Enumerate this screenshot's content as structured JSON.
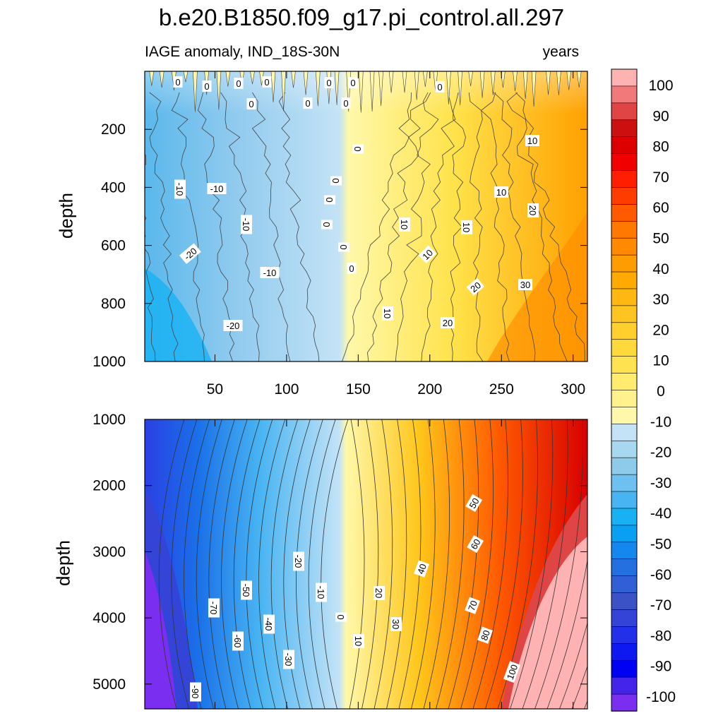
{
  "title": "b.e20.B1850.f09_g17.pi_control.all.297",
  "subtitle_left": "IAGE anomaly, IND_18S-30N",
  "subtitle_right": "years",
  "chart_data": [
    {
      "type": "heatmap",
      "panel": "upper",
      "ylabel": "depth",
      "xlabel": "",
      "xlim": [
        1,
        310
      ],
      "ylim": [
        1000,
        0
      ],
      "xticks": [
        50,
        100,
        150,
        200,
        250,
        300
      ],
      "yticks": [
        200,
        400,
        600,
        800,
        1000
      ],
      "contour_labels": [
        "0",
        "0",
        "0",
        "0",
        "0",
        "0",
        "0",
        "0",
        "0",
        "0",
        "0",
        "0",
        "0",
        "0",
        "0",
        "0",
        "0",
        "-10",
        "-10",
        "-10",
        "-10",
        "-20",
        "-20",
        "10",
        "10",
        "10",
        "10",
        "10",
        "10",
        "20",
        "20",
        "20",
        "30"
      ]
    },
    {
      "type": "heatmap",
      "panel": "lower",
      "ylabel": "depth",
      "xlabel": "",
      "xlim": [
        1,
        310
      ],
      "ylim": [
        5375,
        1000
      ],
      "yticks": [
        1000,
        2000,
        3000,
        4000,
        5000
      ],
      "contour_labels": [
        "-90",
        "-70",
        "-60",
        "-50",
        "-40",
        "-30",
        "-20",
        "-10",
        "0",
        "10",
        "20",
        "30",
        "40",
        "50",
        "60",
        "70",
        "80",
        "100"
      ]
    }
  ],
  "colorbar": {
    "labels": [
      "100",
      "90",
      "80",
      "70",
      "60",
      "50",
      "40",
      "30",
      "20",
      "10",
      "0",
      "-10",
      "-20",
      "-30",
      "-40",
      "-50",
      "-60",
      "-70",
      "-80",
      "-90",
      "-100"
    ],
    "colors": [
      "#ffb2b2",
      "#f07a7a",
      "#e04545",
      "#cc1010",
      "#dc0000",
      "#f00000",
      "#ff1e00",
      "#ff3c00",
      "#ff5a00",
      "#ff7800",
      "#ff8a00",
      "#ff9c00",
      "#ffaa00",
      "#ffb811",
      "#ffc41f",
      "#ffcf2e",
      "#ffd93c",
      "#ffe250",
      "#ffeb6e",
      "#fff28c",
      "#fff8aa",
      "#c4e3f6",
      "#a8d8f0",
      "#8ecbea",
      "#6ec0f0",
      "#48b4f2",
      "#18b2f4",
      "#0aa0f2",
      "#1488ee",
      "#2470e0",
      "#3060d4",
      "#3a52c6",
      "#3444d6",
      "#2230ea",
      "#0e18f0",
      "#0000f2",
      "#4424ea",
      "#7a2ef0"
    ]
  },
  "gradient": {
    "neg": [
      "#7a2ef0",
      "#0000f2",
      "#2a40e4",
      "#3a60d0",
      "#1a8ef0",
      "#10b4f4",
      "#78c4ec",
      "#c4e3f6"
    ],
    "pos": [
      "#fff8aa",
      "#ffe24a",
      "#ffc61a",
      "#ffa600",
      "#ff7a00",
      "#ff2a00",
      "#d80000",
      "#e04545",
      "#ffb2b2"
    ]
  }
}
